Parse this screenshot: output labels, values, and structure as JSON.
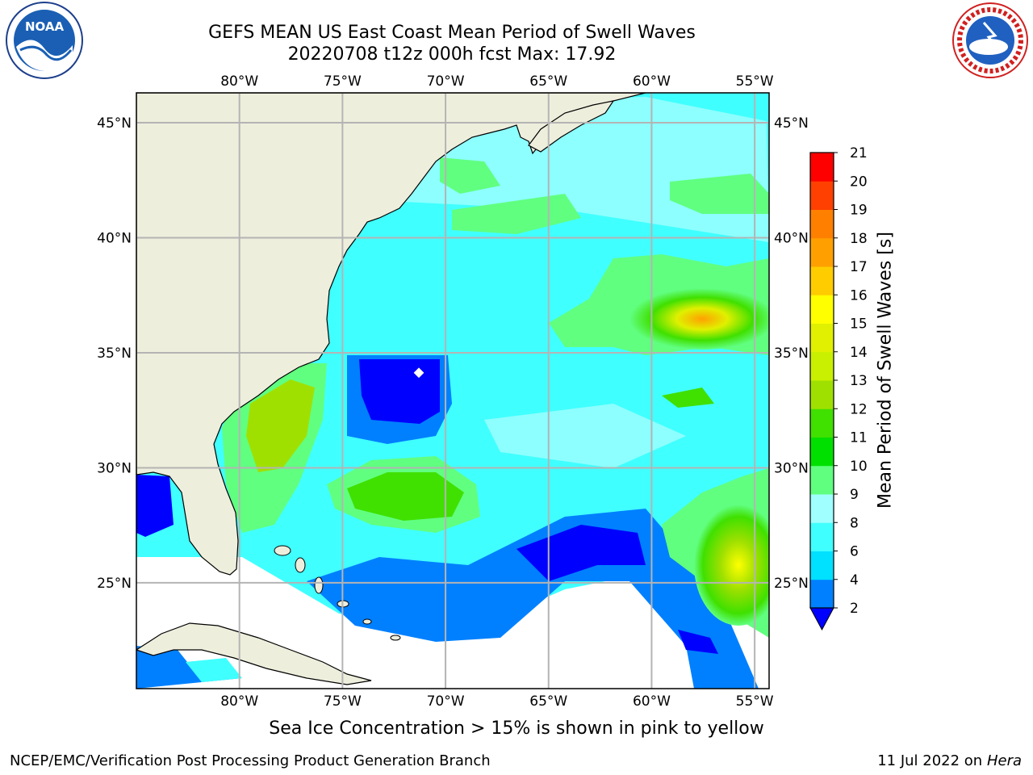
{
  "header": {
    "title_line1": "GEFS MEAN US East Coast Mean Period of Swell Waves",
    "title_line2": "20220708 t12z 000h fcst   Max: 17.92"
  },
  "logos": {
    "left": "NOAA",
    "right": "NATIONAL WEATHER SERVICE"
  },
  "map": {
    "projection": "PlateCarree",
    "lon_range": [
      -85,
      -54.3
    ],
    "lat_range": [
      20.4,
      46.3
    ],
    "lon_ticks": [
      "80°W",
      "75°W",
      "70°W",
      "65°W",
      "60°W",
      "55°W"
    ],
    "lon_tick_values": [
      -80,
      -75,
      -70,
      -65,
      -60,
      -55
    ],
    "lat_ticks": [
      "45°N",
      "40°N",
      "35°N",
      "30°N",
      "25°N"
    ],
    "lat_tick_values": [
      45,
      40,
      35,
      30,
      25
    ],
    "gridlines": true,
    "land_color": "#eeeedd",
    "gridline_color": "#b4b4b4"
  },
  "colorbar": {
    "label": "Mean Period of Swell Waves [s]",
    "levels": [
      "2",
      "4",
      "6",
      "8",
      "9",
      "10",
      "11",
      "12",
      "13",
      "14",
      "15",
      "16",
      "17",
      "18",
      "19",
      "20",
      "21"
    ],
    "colors": [
      "#0000ff",
      "#0080ff",
      "#00e0ff",
      "#40ffff",
      "#a0ffff",
      "#60ff80",
      "#00e000",
      "#40e000",
      "#a0e000",
      "#c8f000",
      "#e0f000",
      "#ffff00",
      "#ffcc00",
      "#ffa000",
      "#ff8000",
      "#ff4000",
      "#ff0000"
    ],
    "extend": "min"
  },
  "footer": {
    "note": "Sea Ice Concentration > 15% is shown in pink to yellow",
    "credit": "NCEP/EMC/Verification Post Processing Product Generation Branch",
    "date": "11 Jul 2022",
    "on_word": "on",
    "machine": "Hera"
  }
}
